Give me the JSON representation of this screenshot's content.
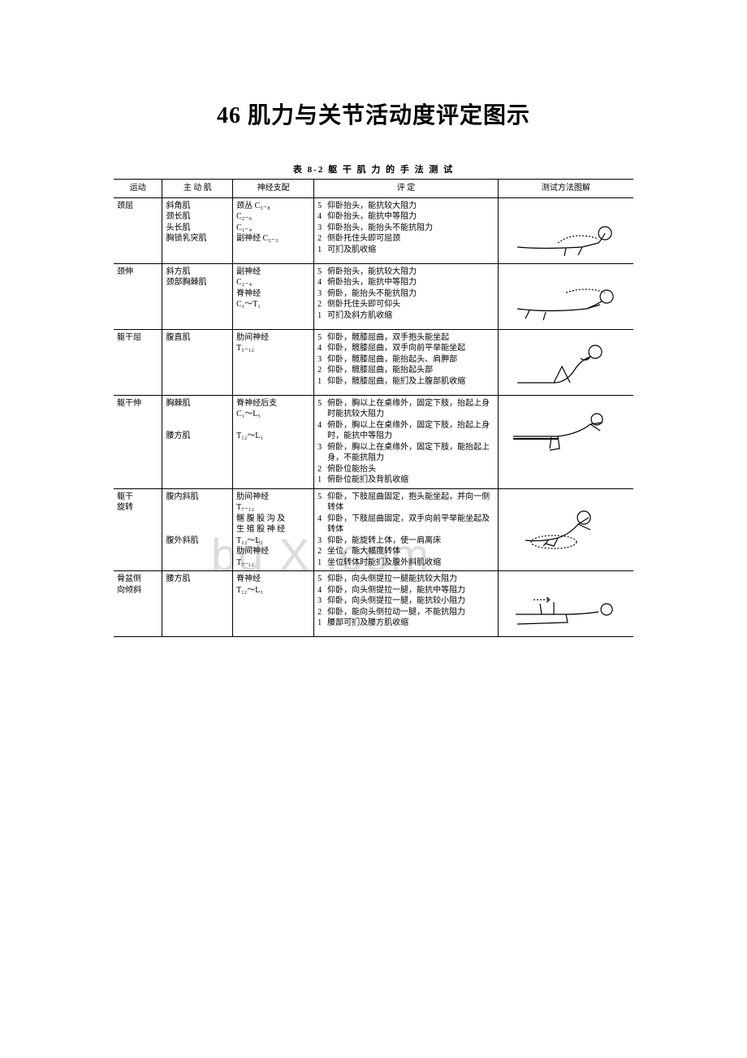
{
  "title": "46 肌力与关节活动度评定图示",
  "table_caption": "表 8-2  躯 干 肌 力 的 手 法 测 试",
  "watermark": "bd    X .com",
  "headers": {
    "motion": "运动",
    "muscle": "主 动 肌",
    "nerve": "神经支配",
    "assess": "评      定",
    "illus": "测试方法图解"
  },
  "rows": [
    {
      "motion": "颈屈",
      "muscle": "斜角肌\n颈长肌\n头长肌\n胸锁乳突肌",
      "nerve": "颈丛 C₃₋₈\nC₂₋₆\nC₁₋₄\n副神经 C₂₋₃",
      "assess": [
        {
          "g": "5",
          "t": "仰卧抬头，能抗较大阻力"
        },
        {
          "g": "4",
          "t": "仰卧抬头，能抗中等阻力"
        },
        {
          "g": "3",
          "t": "仰卧抬头，能抬头不能抗阻力"
        },
        {
          "g": "2",
          "t": "侧卧托住头即可屈颈"
        },
        {
          "g": "1",
          "t": "可扪及肌收缩"
        }
      ],
      "illus": "neck-flex"
    },
    {
      "motion": "颈伸",
      "muscle": "斜方肌\n颈部胸棘肌",
      "nerve": "副神经\nC₂₋₄\n脊神经\nC₁～T₁",
      "assess": [
        {
          "g": "5",
          "t": "俯卧抬头，能抗较大阻力"
        },
        {
          "g": "4",
          "t": "俯卧抬头，能抗中等阻力"
        },
        {
          "g": "3",
          "t": "俯卧，能抬头不能抗阻力"
        },
        {
          "g": "2",
          "t": "侧卧托住头即可仰头"
        },
        {
          "g": "1",
          "t": "可扪及斜方肌收缩"
        }
      ],
      "illus": "neck-ext"
    },
    {
      "motion": "躯干屈",
      "muscle": "腹直肌",
      "nerve": "肋间神经\nT₅₋₁₂",
      "assess": [
        {
          "g": "5",
          "t": "仰卧，髋膝屈曲，双手抱头能坐起"
        },
        {
          "g": "4",
          "t": "仰卧，髋膝屈曲，双手向前平举能坐起"
        },
        {
          "g": "3",
          "t": "仰卧，髋膝屈曲，能抬起头、肩胛部"
        },
        {
          "g": "2",
          "t": "仰卧，髋膝屈曲，能抬起头部"
        },
        {
          "g": "1",
          "t": "仰卧，髋膝屈曲，能扪及上腹部肌收缩"
        }
      ],
      "illus": "trunk-flex"
    },
    {
      "motion": "躯干伸",
      "muscle": "胸棘肌\n\n\n腰方肌",
      "nerve": "脊神经后支\nC₁～L₅\n\nT₁₂～L₃",
      "assess": [
        {
          "g": "5",
          "t": "俯卧，胸以上在桌缘外，固定下肢，抬起上身时能抗较大阻力"
        },
        {
          "g": "4",
          "t": "俯卧，胸以上在桌缘外，固定下肢，抬起上身时，能抗中等阻力"
        },
        {
          "g": "3",
          "t": "俯卧，胸以上在桌缘外，固定下肢，能抬起上身，不能抗阻力"
        },
        {
          "g": "2",
          "t": "俯卧位能抬头"
        },
        {
          "g": "1",
          "t": "俯卧位能扪及背肌收缩"
        }
      ],
      "illus": "trunk-ext"
    },
    {
      "motion": "躯干\n旋转",
      "muscle": "腹内斜肌\n\n\n\n腹外斜肌",
      "nerve": "肋间神经\nT₇₋₁₂\n髂 腹 股 沟 及\n生 殖 股 神 经\nT₁₂～L₂\n肋间神经\nT₇₋₁₂",
      "assess": [
        {
          "g": "5",
          "t": "仰卧，下肢屈曲固定，抱头能坐起，并向一侧转体"
        },
        {
          "g": "4",
          "t": "仰卧，下肢屈曲固定，双手向前平举能坐起及转体"
        },
        {
          "g": "3",
          "t": "仰卧，能旋转上体，使一肩离床"
        },
        {
          "g": "2",
          "t": "坐位，能大幅度转体"
        },
        {
          "g": "1",
          "t": "坐位转体时能扪及腹外斜肌收缩"
        }
      ],
      "illus": "trunk-rot"
    },
    {
      "motion": "骨盆侧\n向倾斜",
      "muscle": "腰方肌",
      "nerve": "脊神经\nT₁₂～L₃",
      "assess": [
        {
          "g": "5",
          "t": "仰卧，向头侧提拉一腿能抗较大阻力"
        },
        {
          "g": "4",
          "t": "仰卧，向头侧提拉一腿，能抗中等阻力"
        },
        {
          "g": "3",
          "t": "仰卧，向头侧提拉一腿，能抗较小阻力"
        },
        {
          "g": "2",
          "t": "仰卧，能向头侧拉动一腿，不能抗阻力"
        },
        {
          "g": "1",
          "t": "腰部可扪及腰方肌收缩"
        }
      ],
      "illus": "pelvis-tilt"
    }
  ],
  "style": {
    "page_bg": "#ffffff",
    "text_color": "#000000",
    "watermark_color": "#dcdcdc",
    "border_color": "#000000",
    "title_fontsize": 28,
    "body_fontsize": 10,
    "caption_fontsize": 11
  }
}
